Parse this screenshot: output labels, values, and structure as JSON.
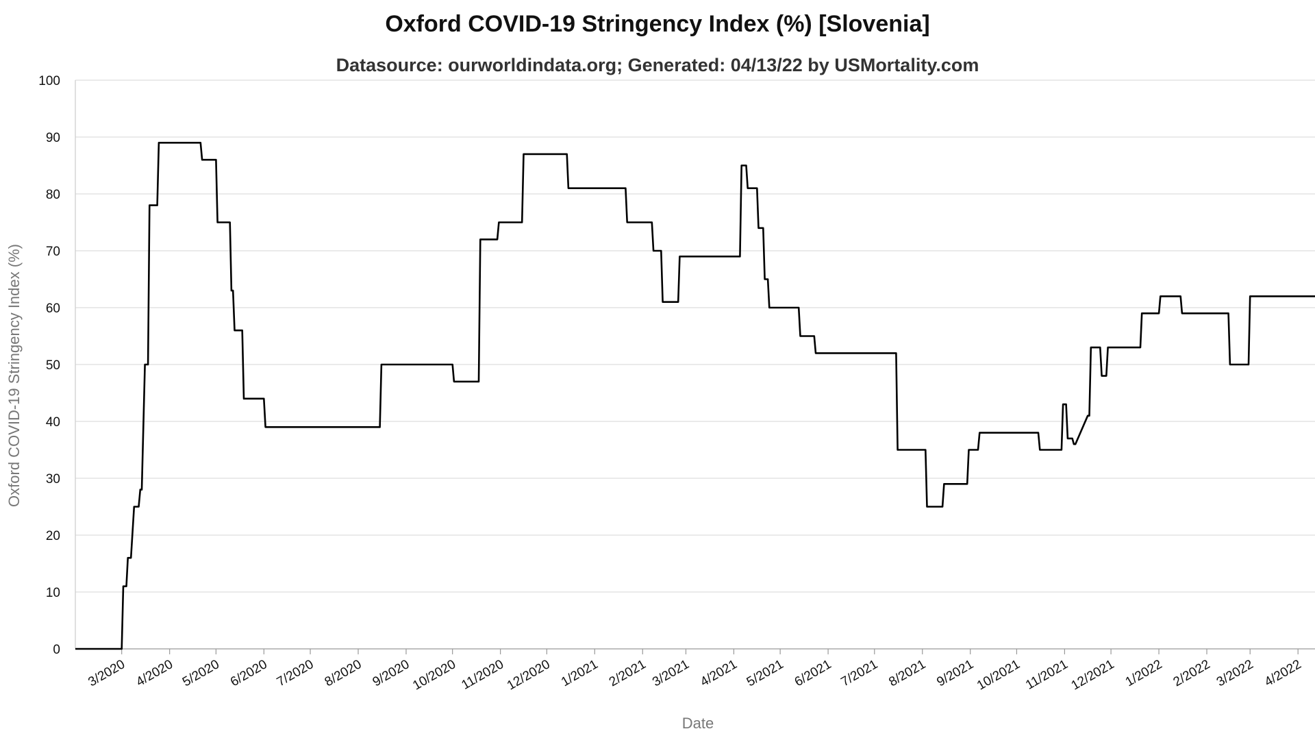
{
  "chart_data": {
    "type": "line",
    "title": "Oxford COVID-19 Stringency Index (%) [Slovenia]",
    "subtitle": "Datasource: ourworldindata.org; Generated: 04/13/22 by USMortality.com",
    "xlabel": "Date",
    "ylabel": "Oxford COVID-19 Stringency Index (%)",
    "ylim": [
      0,
      100
    ],
    "yticks": [
      0,
      10,
      20,
      30,
      40,
      50,
      60,
      70,
      80,
      90,
      100
    ],
    "xlim": [
      "2020-01-31",
      "2022-04-12"
    ],
    "xticks": [
      "2020-03-01",
      "2020-04-01",
      "2020-05-01",
      "2020-06-01",
      "2020-07-01",
      "2020-08-01",
      "2020-09-01",
      "2020-10-01",
      "2020-11-01",
      "2020-12-01",
      "2021-01-01",
      "2021-02-01",
      "2021-03-01",
      "2021-04-01",
      "2021-05-01",
      "2021-06-01",
      "2021-07-01",
      "2021-08-01",
      "2021-09-01",
      "2021-10-01",
      "2021-11-01",
      "2021-12-01",
      "2022-01-01",
      "2022-02-01",
      "2022-03-01",
      "2022-04-01"
    ],
    "xtick_labels": [
      "3/2020",
      "4/2020",
      "5/2020",
      "6/2020",
      "7/2020",
      "8/2020",
      "9/2020",
      "10/2020",
      "11/2020",
      "12/2020",
      "1/2021",
      "2/2021",
      "3/2021",
      "4/2021",
      "5/2021",
      "6/2021",
      "7/2021",
      "8/2021",
      "9/2021",
      "10/2021",
      "11/2021",
      "12/2021",
      "1/2022",
      "2/2022",
      "3/2022",
      "4/2022"
    ],
    "grid": true,
    "line_color": "#000000",
    "series": [
      {
        "x": [
          "2020-01-31",
          "2020-03-01",
          "2020-03-02",
          "2020-03-04",
          "2020-03-05",
          "2020-03-07",
          "2020-03-09",
          "2020-03-12",
          "2020-03-13",
          "2020-03-14",
          "2020-03-16",
          "2020-03-18",
          "2020-03-19",
          "2020-03-24",
          "2020-03-25",
          "2020-03-31",
          "2020-04-01",
          "2020-04-21",
          "2020-04-22",
          "2020-05-01",
          "2020-05-02",
          "2020-05-10",
          "2020-05-11",
          "2020-05-12",
          "2020-05-13",
          "2020-05-18",
          "2020-05-19",
          "2020-05-31",
          "2020-06-01",
          "2020-06-02",
          "2020-08-15",
          "2020-08-16",
          "2020-10-01",
          "2020-10-02",
          "2020-10-18",
          "2020-10-19",
          "2020-10-21",
          "2020-10-22",
          "2020-10-30",
          "2020-10-31",
          "2020-11-15",
          "2020-11-16",
          "2020-12-14",
          "2020-12-15",
          "2021-01-21",
          "2021-01-22",
          "2021-02-07",
          "2021-02-08",
          "2021-02-13",
          "2021-02-14",
          "2021-02-24",
          "2021-02-25",
          "2021-03-31",
          "2021-04-01",
          "2021-04-05",
          "2021-04-06",
          "2021-04-09",
          "2021-04-10",
          "2021-04-16",
          "2021-04-17",
          "2021-04-20",
          "2021-04-21",
          "2021-04-23",
          "2021-04-24",
          "2021-05-13",
          "2021-05-14",
          "2021-05-23",
          "2021-05-24",
          "2021-07-15",
          "2021-07-16",
          "2021-08-03",
          "2021-08-04",
          "2021-08-14",
          "2021-08-15",
          "2021-08-30",
          "2021-08-31",
          "2021-09-06",
          "2021-09-07",
          "2021-10-15",
          "2021-10-16",
          "2021-10-30",
          "2021-10-31",
          "2021-11-02",
          "2021-11-03",
          "2021-11-06",
          "2021-11-07",
          "2021-11-08",
          "2021-11-16",
          "2021-11-17",
          "2021-11-18",
          "2021-11-24",
          "2021-11-25",
          "2021-11-28",
          "2021-11-29",
          "2021-12-20",
          "2021-12-21",
          "2022-01-01",
          "2022-01-02",
          "2022-01-15",
          "2022-01-16",
          "2022-02-15",
          "2022-02-16",
          "2022-02-28",
          "2022-03-01",
          "2022-04-12"
        ],
        "y": [
          0,
          0,
          11,
          11,
          16,
          16,
          25,
          25,
          28,
          28,
          50,
          50,
          78,
          78,
          89,
          89,
          89,
          89,
          86,
          86,
          75,
          75,
          63,
          63,
          56,
          56,
          44,
          44,
          44,
          39,
          39,
          50,
          50,
          47,
          47,
          72,
          72,
          72,
          72,
          75,
          75,
          87,
          87,
          81,
          81,
          75,
          75,
          70,
          70,
          61,
          61,
          69,
          69,
          69,
          69,
          85,
          85,
          81,
          81,
          74,
          74,
          65,
          65,
          60,
          60,
          55,
          55,
          52,
          52,
          35,
          35,
          25,
          25,
          29,
          29,
          35,
          35,
          38,
          38,
          35,
          35,
          43,
          43,
          37,
          37,
          36,
          36,
          41,
          41,
          53,
          53,
          48,
          48,
          53,
          53,
          59,
          59,
          62,
          62,
          59,
          59,
          50,
          50,
          62,
          62
        ]
      }
    ]
  }
}
